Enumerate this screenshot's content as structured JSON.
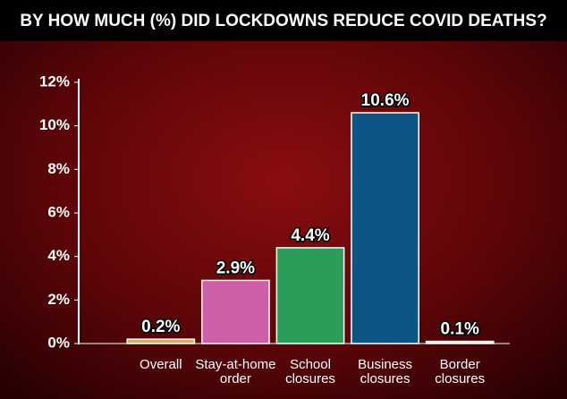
{
  "chart_data": {
    "type": "bar",
    "title": "BY HOW MUCH (%) DID LOCKDOWNS REDUCE COVID DEATHS?",
    "categories": [
      "Overall",
      "Stay-at-home order",
      "School closures",
      "Business closures",
      "Border closures"
    ],
    "values": [
      0.2,
      2.9,
      4.4,
      10.6,
      0.1
    ],
    "value_labels": [
      "0.2%",
      "2.9%",
      "4.4%",
      "10.6%",
      "0.1%"
    ],
    "colors": [
      "#c7b26a",
      "#cc5fa8",
      "#2a9d5a",
      "#0d5585",
      "#e8e6e0"
    ],
    "ylim": [
      0,
      12
    ],
    "yticks": [
      {
        "value": 0,
        "label": "0%"
      },
      {
        "value": 2,
        "label": "2%"
      },
      {
        "value": 4,
        "label": "4%"
      },
      {
        "value": 6,
        "label": "6%"
      },
      {
        "value": 8,
        "label": "8%"
      },
      {
        "value": 10,
        "label": "10%"
      },
      {
        "value": 12,
        "label": "12%"
      }
    ]
  }
}
